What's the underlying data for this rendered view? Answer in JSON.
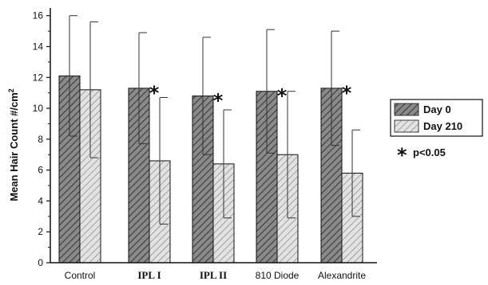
{
  "chart_data": {
    "type": "bar",
    "categories": [
      "Control",
      "IPL I",
      "IPL II",
      "810 Diode",
      "Alexandrite"
    ],
    "series": [
      {
        "name": "Day 0",
        "values": [
          12.1,
          11.3,
          10.8,
          11.1,
          11.3
        ],
        "errors": [
          3.9,
          3.6,
          3.8,
          4.0,
          3.7
        ],
        "color": "#6e6e6e",
        "hatch": "dense-diagonal"
      },
      {
        "name": "Day 210",
        "values": [
          11.2,
          6.6,
          6.4,
          7.0,
          5.8
        ],
        "errors": [
          4.4,
          4.1,
          3.5,
          4.1,
          2.8
        ],
        "color": "#cfcfcf",
        "hatch": "light-diagonal"
      }
    ],
    "significant": [
      false,
      true,
      true,
      true,
      true
    ],
    "ylabel": "Mean Hair Count  #/cm",
    "ylabel_superscript": "2",
    "yticks": [
      "0",
      "2",
      "4",
      "6",
      "8",
      "10",
      "12",
      "14",
      "16"
    ],
    "ylim": [
      0,
      16.5
    ],
    "grid": false,
    "legend_position": "right",
    "star_symbol": "*",
    "significance_note": "p<0.05"
  }
}
